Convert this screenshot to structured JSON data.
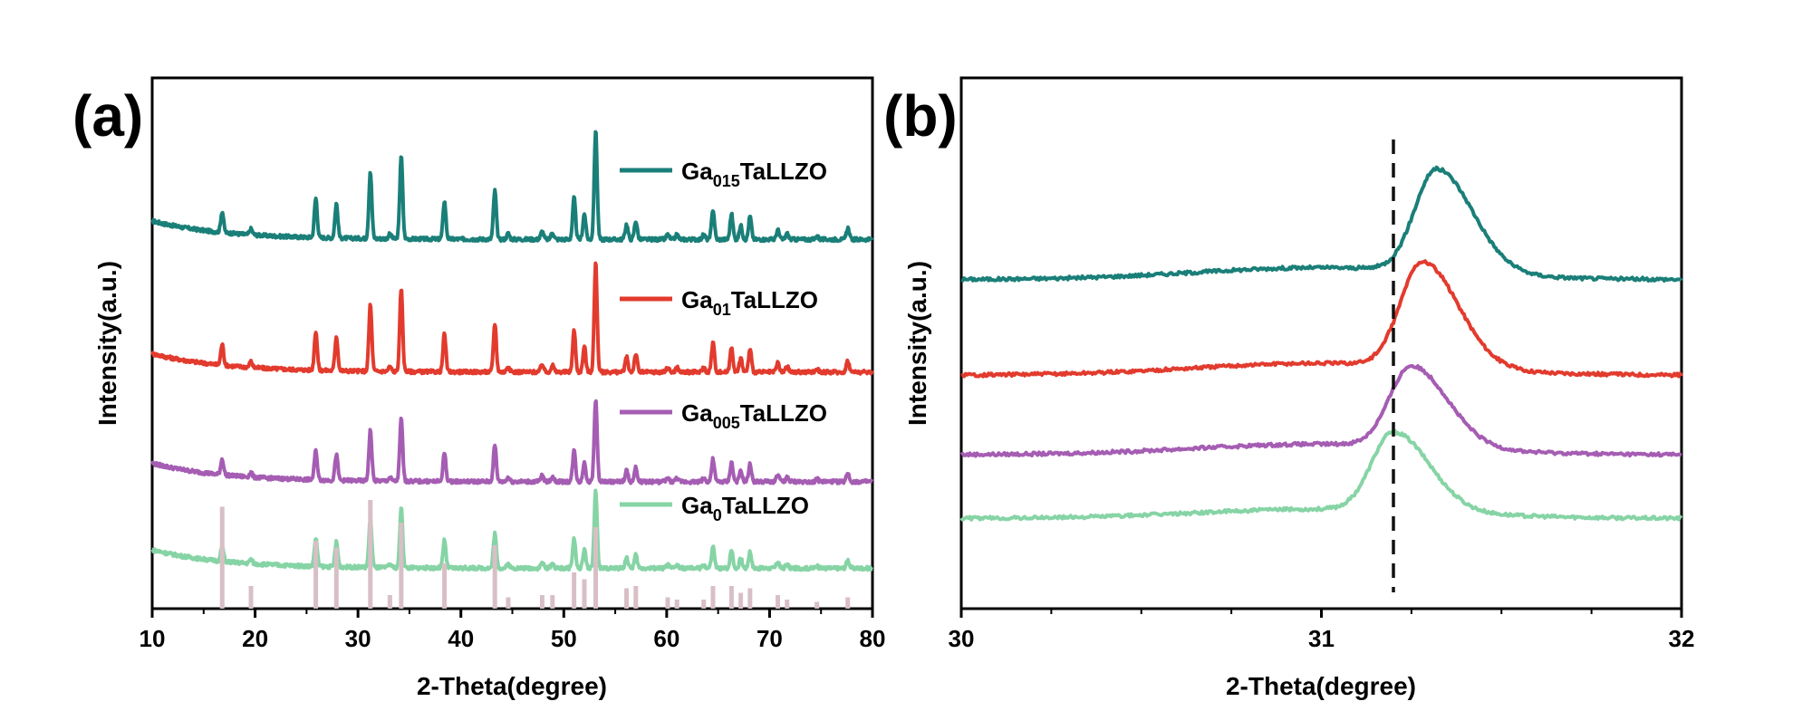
{
  "chart_data": [
    {
      "panel": "(a)",
      "type": "line",
      "xlabel": "2-Theta(degree)",
      "ylabel": "Intensity(a.u.)",
      "xlim": [
        10,
        80
      ],
      "xticks": [
        10,
        20,
        30,
        40,
        50,
        60,
        70,
        80
      ],
      "xtick_labels": [
        "10",
        "20",
        "30",
        "40",
        "50",
        "60",
        "70",
        "80"
      ],
      "y_ticks_shown": false,
      "legend": [
        {
          "prefix": "Ga",
          "sub": "015",
          "suffix": "TaLLZO",
          "color": "#1a7f78"
        },
        {
          "prefix": "Ga",
          "sub": "01",
          "suffix": "TaLLZO",
          "color": "#e23b2e"
        },
        {
          "prefix": "Ga",
          "sub": "005",
          "suffix": "TaLLZO",
          "color": "#a55db3"
        },
        {
          "prefix": "Ga",
          "sub": "0",
          "suffix": "TaLLZO",
          "color": "#86d4a5"
        }
      ],
      "series": [
        {
          "name": "Ga015TaLLZO",
          "color": "#1a7f78",
          "offset": 3.2,
          "scale": 1.0
        },
        {
          "name": "Ga01TaLLZO",
          "color": "#e23b2e",
          "offset": 2.05,
          "scale": 1.0
        },
        {
          "name": "Ga005TaLLZO",
          "color": "#a55db3",
          "offset": 1.1,
          "scale": 0.75
        },
        {
          "name": "Ga0TaLLZO",
          "color": "#86d4a5",
          "offset": 0.35,
          "scale": 0.72
        }
      ],
      "peaks": [
        {
          "x": 16.8,
          "h": 0.18,
          "ref": 0.45
        },
        {
          "x": 19.6,
          "h": 0.05,
          "ref": 0.1
        },
        {
          "x": 25.9,
          "h": 0.34,
          "ref": 0.3
        },
        {
          "x": 27.9,
          "h": 0.3,
          "ref": 0.27
        },
        {
          "x": 31.2,
          "h": 0.58,
          "ref": 0.48
        },
        {
          "x": 33.1,
          "h": 0.04,
          "ref": 0.06
        },
        {
          "x": 34.2,
          "h": 0.72,
          "ref": 0.38
        },
        {
          "x": 38.4,
          "h": 0.33,
          "ref": 0.2
        },
        {
          "x": 43.3,
          "h": 0.42,
          "ref": 0.28
        },
        {
          "x": 44.6,
          "h": 0.05,
          "ref": 0.05
        },
        {
          "x": 47.9,
          "h": 0.07,
          "ref": 0.06
        },
        {
          "x": 48.9,
          "h": 0.06,
          "ref": 0.06
        },
        {
          "x": 51.0,
          "h": 0.36,
          "ref": 0.16
        },
        {
          "x": 52.0,
          "h": 0.22,
          "ref": 0.13
        },
        {
          "x": 53.1,
          "h": 0.95,
          "ref": 0.36
        },
        {
          "x": 56.1,
          "h": 0.13,
          "ref": 0.09
        },
        {
          "x": 57.0,
          "h": 0.16,
          "ref": 0.1
        },
        {
          "x": 60.1,
          "h": 0.04,
          "ref": 0.05
        },
        {
          "x": 61.0,
          "h": 0.04,
          "ref": 0.04
        },
        {
          "x": 63.6,
          "h": 0.04,
          "ref": 0.04
        },
        {
          "x": 64.5,
          "h": 0.26,
          "ref": 0.1
        },
        {
          "x": 66.3,
          "h": 0.22,
          "ref": 0.1
        },
        {
          "x": 67.2,
          "h": 0.12,
          "ref": 0.07
        },
        {
          "x": 68.1,
          "h": 0.2,
          "ref": 0.09
        },
        {
          "x": 70.8,
          "h": 0.08,
          "ref": 0.06
        },
        {
          "x": 71.7,
          "h": 0.05,
          "ref": 0.04
        },
        {
          "x": 74.6,
          "h": 0.03,
          "ref": 0.03
        },
        {
          "x": 77.6,
          "h": 0.1,
          "ref": 0.05
        }
      ],
      "reference_pattern_color": "#d8bfc6"
    },
    {
      "panel": "(b)",
      "type": "line",
      "xlabel": "2-Theta(degree)",
      "ylabel": "Intensity(a.u.)",
      "xlim": [
        30,
        32
      ],
      "xticks": [
        30,
        31,
        32
      ],
      "xtick_labels": [
        "30",
        "31",
        "32"
      ],
      "y_ticks_shown": false,
      "reference_line_x": 31.2,
      "series": [
        {
          "name": "Ga015TaLLZO",
          "color": "#1a7f78",
          "baseline": 0.62,
          "peak_x": 31.32,
          "peak_h": 0.51,
          "rise": 0.09
        },
        {
          "name": "Ga01TaLLZO",
          "color": "#e23b2e",
          "baseline": 0.44,
          "peak_x": 31.28,
          "peak_h": 0.52,
          "rise": 0.09
        },
        {
          "name": "Ga005TaLLZO",
          "color": "#a55db3",
          "baseline": 0.29,
          "peak_x": 31.25,
          "peak_h": 0.4,
          "rise": 0.08
        },
        {
          "name": "Ga0TaLLZO",
          "color": "#86d4a5",
          "baseline": 0.17,
          "peak_x": 31.2,
          "peak_h": 0.39,
          "rise": 0.07
        }
      ]
    }
  ]
}
